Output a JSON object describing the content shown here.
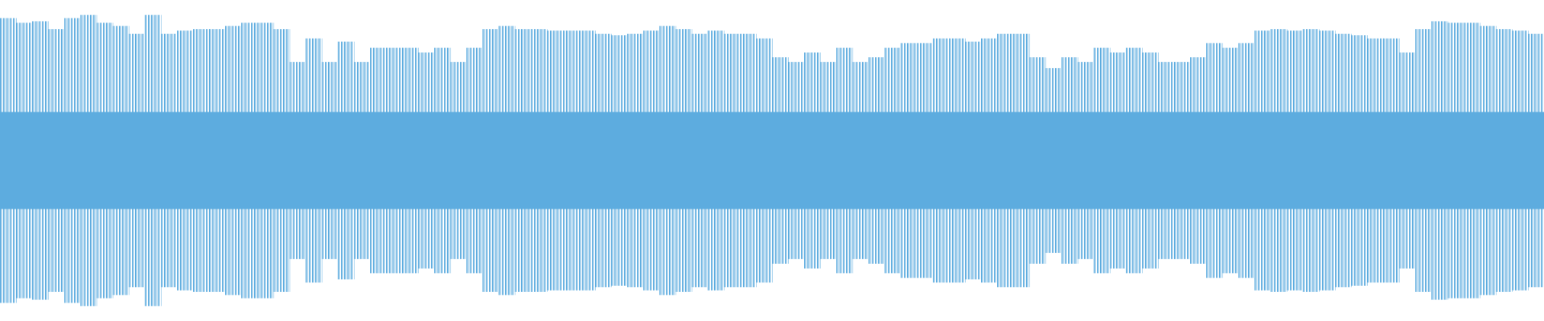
{
  "chart_data": {
    "type": "waveform",
    "color": "#5dacdf",
    "ylim": [
      -1,
      1
    ],
    "values": [
      0.91,
      0.88,
      0.89,
      0.84,
      0.91,
      0.93,
      0.88,
      0.86,
      0.81,
      0.93,
      0.81,
      0.83,
      0.84,
      0.84,
      0.86,
      0.88,
      0.88,
      0.84,
      0.63,
      0.78,
      0.63,
      0.76,
      0.63,
      0.72,
      0.72,
      0.72,
      0.69,
      0.72,
      0.63,
      0.72,
      0.84,
      0.86,
      0.84,
      0.84,
      0.83,
      0.83,
      0.83,
      0.81,
      0.8,
      0.81,
      0.83,
      0.86,
      0.84,
      0.81,
      0.83,
      0.81,
      0.81,
      0.78,
      0.66,
      0.63,
      0.69,
      0.63,
      0.72,
      0.63,
      0.66,
      0.72,
      0.75,
      0.75,
      0.78,
      0.78,
      0.76,
      0.78,
      0.81,
      0.81,
      0.66,
      0.59,
      0.66,
      0.63,
      0.72,
      0.69,
      0.72,
      0.69,
      0.63,
      0.63,
      0.66,
      0.75,
      0.72,
      0.75,
      0.83,
      0.84,
      0.83,
      0.84,
      0.83,
      0.81,
      0.8,
      0.78,
      0.78,
      0.69,
      0.84,
      0.89,
      0.88,
      0.88,
      0.86,
      0.84,
      0.83,
      0.81
    ],
    "core": 0.31
  }
}
